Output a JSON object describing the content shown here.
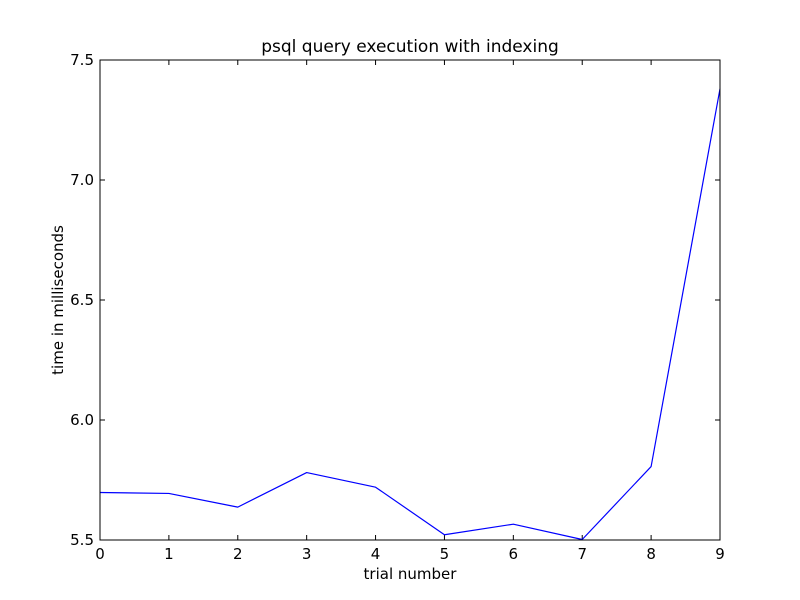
{
  "chart_data": {
    "type": "line",
    "title": "psql query execution with indexing",
    "xlabel": "trial number",
    "ylabel": "time in milliseconds",
    "x": [
      0,
      1,
      2,
      3,
      4,
      5,
      6,
      7,
      8,
      9
    ],
    "series": [
      {
        "values": [
          5.698,
          5.694,
          5.637,
          5.781,
          5.72,
          5.522,
          5.566,
          5.502,
          5.806,
          7.38
        ],
        "color": "#0000ff"
      }
    ],
    "xlim": [
      0,
      9
    ],
    "ylim": [
      5.5,
      7.5
    ],
    "x_ticks": [
      "0",
      "1",
      "2",
      "3",
      "4",
      "5",
      "6",
      "7",
      "8",
      "9"
    ],
    "y_ticks": [
      "5.5",
      "6.0",
      "6.5",
      "7.0",
      "7.5"
    ],
    "grid": false,
    "legend": "none"
  }
}
